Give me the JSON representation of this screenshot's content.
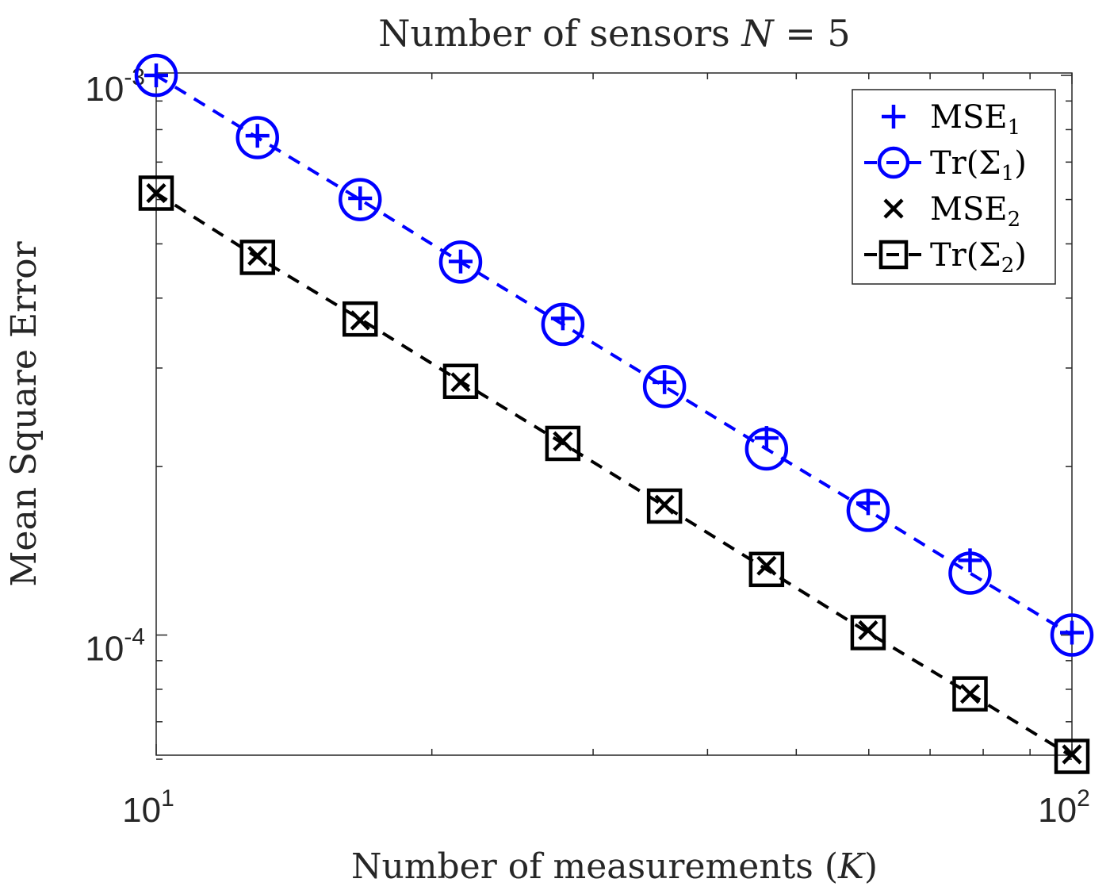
{
  "chart_data": {
    "type": "line",
    "title": "Number of sensors N = 5",
    "xlabel": "Number of measurements (K)",
    "ylabel": "Mean Square Error",
    "xscale": "log",
    "yscale": "log",
    "xlim": [
      10,
      100
    ],
    "ylim": [
      6.1e-05,
      0.00101
    ],
    "grid": false,
    "legend_position": "top-right",
    "x_ticks": [
      {
        "value": 10,
        "base": "10",
        "exp": "1"
      },
      {
        "value": 100,
        "base": "10",
        "exp": "2"
      }
    ],
    "y_ticks": [
      {
        "value": 0.0001,
        "base": "10",
        "exp": "-4"
      },
      {
        "value": 0.001,
        "base": "10",
        "exp": "-3"
      }
    ],
    "x": [
      10,
      12.9,
      16.7,
      21.5,
      27.8,
      35.9,
      46.4,
      59.9,
      77.4,
      100
    ],
    "series": [
      {
        "name": "MSE",
        "sub": "1",
        "marker": "plus",
        "line": "none",
        "color": "#0000ff",
        "values": [
          0.001,
          0.00078,
          0.000603,
          0.000465,
          0.000368,
          0.000283,
          0.000225,
          0.000172,
          0.000136,
          0.000101
        ]
      },
      {
        "name": "Tr(Σ",
        "sub": "1",
        "suffix": ")",
        "marker": "circle",
        "line": "dashed",
        "color": "#0000ff",
        "values": [
          0.001,
          0.000774,
          0.0006,
          0.000464,
          0.000359,
          0.000278,
          0.000215,
          0.000167,
          0.000129,
          0.0001
        ]
      },
      {
        "name": "MSE",
        "sub": "2",
        "marker": "x",
        "line": "none",
        "color": "#000000",
        "values": [
          0.000616,
          0.000476,
          0.000365,
          0.000283,
          0.000222,
          0.000171,
          0.000133,
          0.000102,
          7.85e-05,
          6.12e-05
        ]
      },
      {
        "name": "Tr(Σ",
        "sub": "2",
        "suffix": ")",
        "marker": "square",
        "line": "dashed",
        "color": "#000000",
        "values": [
          0.000616,
          0.000473,
          0.000367,
          0.000284,
          0.00022,
          0.00017,
          0.000131,
          0.000101,
          7.85e-05,
          6.07e-05
        ]
      }
    ]
  }
}
